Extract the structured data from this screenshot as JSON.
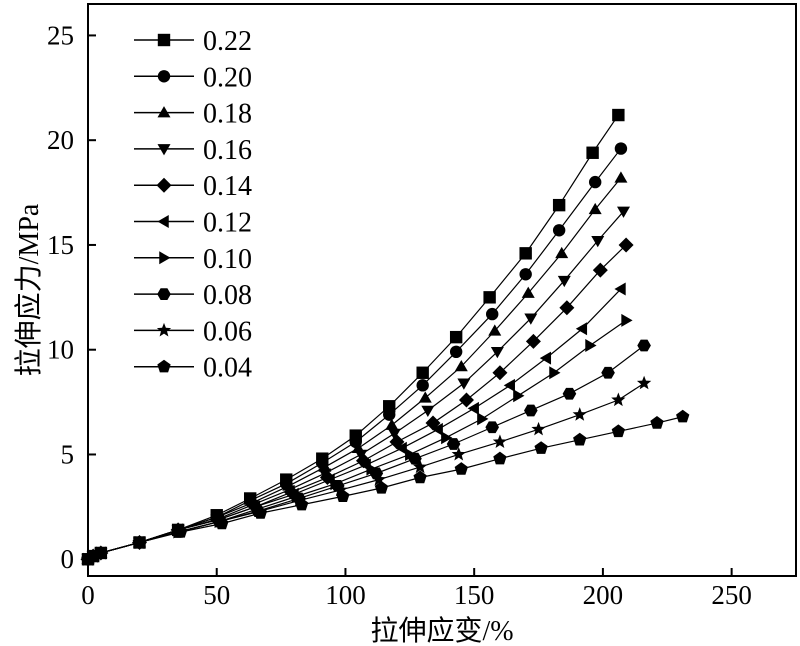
{
  "chart_data": {
    "type": "line",
    "xlabel": "拉伸应变/%",
    "ylabel": "拉伸应力/MPa",
    "xlim": [
      0,
      275
    ],
    "ylim": [
      -0.8,
      26.5
    ],
    "xticks": [
      0,
      50,
      100,
      150,
      200,
      250
    ],
    "yticks": [
      0,
      5,
      10,
      15,
      20,
      25
    ],
    "grid": false,
    "legend_position": "top-left",
    "series": [
      {
        "name": "0.22",
        "marker": "square",
        "x": [
          0,
          2,
          5,
          20,
          35,
          50,
          63,
          77,
          91,
          104,
          117,
          130,
          143,
          156,
          170,
          183,
          196,
          206
        ],
        "y": [
          0,
          0.15,
          0.3,
          0.8,
          1.4,
          2.1,
          2.9,
          3.8,
          4.8,
          5.9,
          7.3,
          8.9,
          10.6,
          12.5,
          14.6,
          16.9,
          19.4,
          21.2
        ]
      },
      {
        "name": "0.20",
        "marker": "circle",
        "x": [
          0,
          2,
          5,
          20,
          35,
          50,
          63,
          77,
          91,
          104,
          117,
          130,
          143,
          157,
          170,
          183,
          197,
          207
        ],
        "y": [
          0,
          0.15,
          0.3,
          0.8,
          1.4,
          2.0,
          2.8,
          3.6,
          4.6,
          5.6,
          6.9,
          8.3,
          9.9,
          11.7,
          13.6,
          15.7,
          18.0,
          19.6
        ]
      },
      {
        "name": "0.18",
        "marker": "triangle-up",
        "x": [
          0,
          2,
          5,
          20,
          35,
          50,
          64,
          78,
          92,
          105,
          118,
          131,
          145,
          158,
          171,
          184,
          197,
          207
        ],
        "y": [
          0,
          0.15,
          0.3,
          0.8,
          1.4,
          2.0,
          2.7,
          3.5,
          4.4,
          5.3,
          6.4,
          7.7,
          9.2,
          10.9,
          12.7,
          14.6,
          16.7,
          18.2
        ]
      },
      {
        "name": "0.16",
        "marker": "triangle-down",
        "x": [
          0,
          2,
          5,
          20,
          35,
          50,
          64,
          78,
          92,
          106,
          119,
          132,
          146,
          159,
          172,
          185,
          198,
          208
        ],
        "y": [
          0,
          0.15,
          0.3,
          0.8,
          1.4,
          1.9,
          2.6,
          3.3,
          4.1,
          5.0,
          6.0,
          7.1,
          8.4,
          9.9,
          11.5,
          13.3,
          15.2,
          16.6
        ]
      },
      {
        "name": "0.14",
        "marker": "diamond",
        "x": [
          0,
          2,
          5,
          20,
          35,
          51,
          65,
          79,
          93,
          107,
          120,
          134,
          147,
          160,
          173,
          186,
          199,
          209
        ],
        "y": [
          0,
          0.15,
          0.3,
          0.8,
          1.4,
          1.9,
          2.5,
          3.2,
          3.9,
          4.7,
          5.6,
          6.5,
          7.6,
          8.9,
          10.4,
          12.0,
          13.8,
          15.0
        ]
      },
      {
        "name": "0.12",
        "marker": "triangle-left",
        "x": [
          0,
          2,
          5,
          20,
          35,
          51,
          65,
          80,
          94,
          108,
          122,
          136,
          150,
          164,
          178,
          192,
          207
        ],
        "y": [
          0,
          0.15,
          0.3,
          0.8,
          1.4,
          1.9,
          2.5,
          3.1,
          3.8,
          4.5,
          5.3,
          6.2,
          7.2,
          8.3,
          9.6,
          11.0,
          12.9
        ]
      },
      {
        "name": "0.10",
        "marker": "triangle-right",
        "x": [
          0,
          2,
          5,
          20,
          35,
          51,
          66,
          81,
          96,
          110,
          125,
          139,
          153,
          167,
          181,
          195,
          209
        ],
        "y": [
          0,
          0.15,
          0.3,
          0.8,
          1.3,
          1.8,
          2.4,
          3.0,
          3.6,
          4.3,
          5.0,
          5.8,
          6.7,
          7.8,
          8.9,
          10.2,
          11.4
        ]
      },
      {
        "name": "0.08",
        "marker": "hexagon",
        "x": [
          0,
          2,
          5,
          20,
          35,
          51,
          66,
          82,
          97,
          112,
          127,
          142,
          157,
          172,
          187,
          202,
          216
        ],
        "y": [
          0,
          0.15,
          0.3,
          0.8,
          1.3,
          1.8,
          2.3,
          2.9,
          3.5,
          4.1,
          4.8,
          5.5,
          6.3,
          7.1,
          7.9,
          8.9,
          10.2
        ]
      },
      {
        "name": "0.06",
        "marker": "star",
        "x": [
          0,
          2,
          5,
          20,
          35,
          51,
          67,
          82,
          98,
          113,
          129,
          144,
          160,
          175,
          191,
          206,
          216
        ],
        "y": [
          0,
          0.15,
          0.3,
          0.8,
          1.3,
          1.8,
          2.3,
          2.8,
          3.3,
          3.8,
          4.4,
          5.0,
          5.6,
          6.2,
          6.9,
          7.6,
          8.4
        ]
      },
      {
        "name": "0.04",
        "marker": "pentagon",
        "x": [
          0,
          2,
          5,
          20,
          36,
          52,
          67,
          83,
          99,
          114,
          129,
          145,
          160,
          176,
          191,
          206,
          221,
          231
        ],
        "y": [
          0,
          0.15,
          0.3,
          0.8,
          1.3,
          1.7,
          2.2,
          2.6,
          3.0,
          3.4,
          3.9,
          4.3,
          4.8,
          5.3,
          5.7,
          6.1,
          6.5,
          6.8
        ]
      }
    ]
  }
}
